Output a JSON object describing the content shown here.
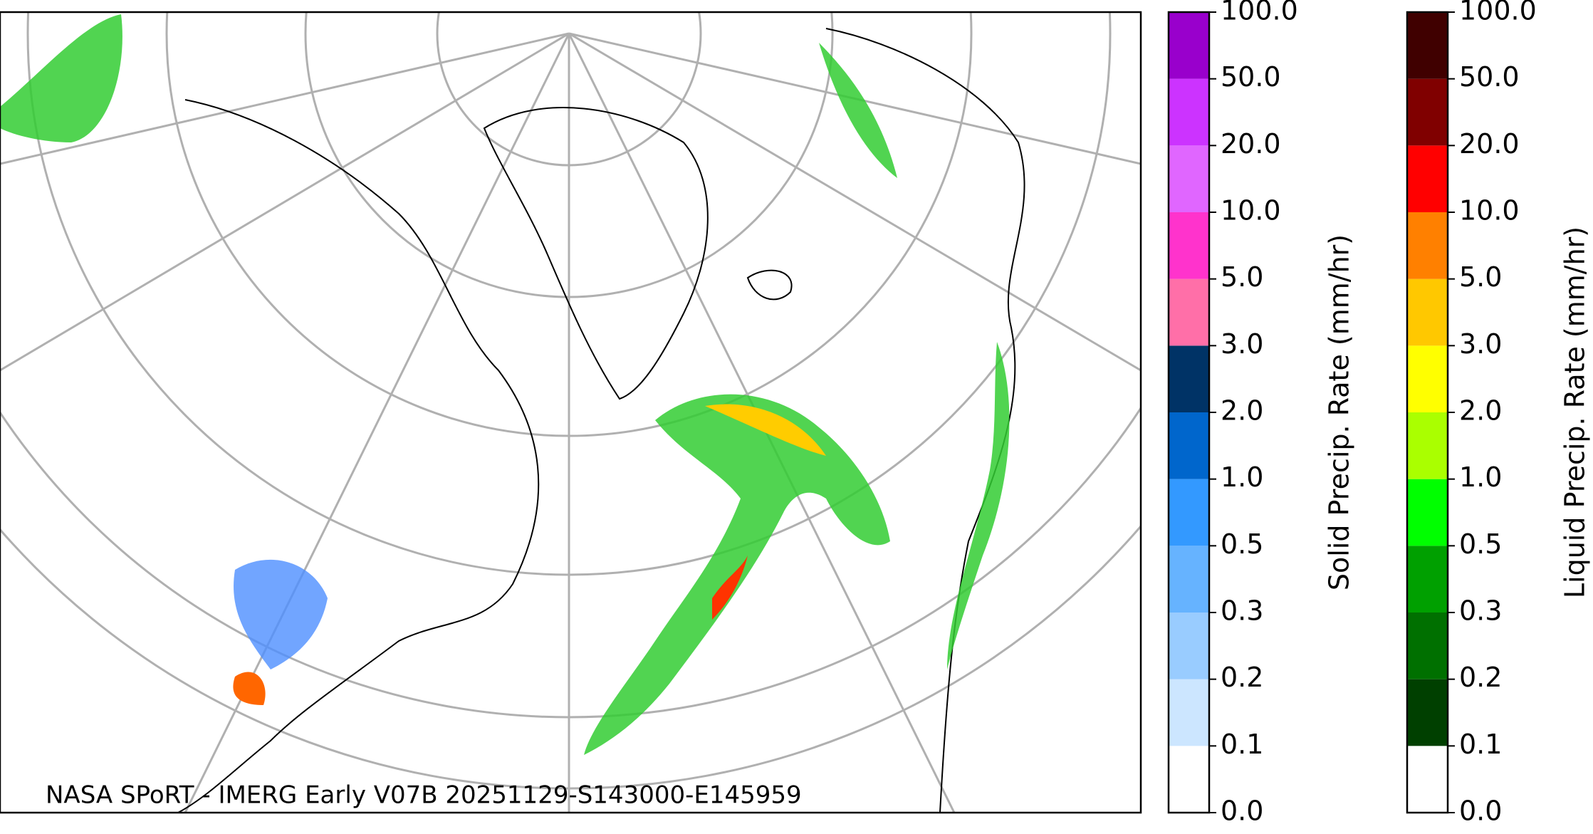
{
  "map": {
    "caption": "NASA SPoRT - IMERG Early V07B 20251129-S143000-E145959",
    "colorbars": [
      {
        "label": "Solid Precip. Rate (mm/hr)",
        "ticks": [
          {
            "value": 0,
            "label": "0.0"
          },
          0.1,
          0.2,
          0.3,
          0.5,
          {
            "value": 1,
            "label": "1.0"
          },
          {
            "value": 2,
            "label": "2.0"
          },
          {
            "value": 3,
            "label": "3.0"
          },
          {
            "value": 5,
            "label": "5.0"
          },
          {
            "value": 10,
            "label": "10.0"
          },
          {
            "value": 20,
            "label": "20.0"
          },
          {
            "value": 50,
            "label": "50.0"
          },
          {
            "value": 100,
            "label": "100.0"
          }
        ],
        "colors": [
          "#ffffff",
          "#cce6ff",
          "#99ccff",
          "#66b3ff",
          "#3399ff",
          "#0066cc",
          "#003366",
          "#ff6fa8",
          "#ff33cc",
          "#e066ff",
          "#cc33ff",
          "#9900cc"
        ]
      },
      {
        "label": "Liquid Precip. Rate (mm/hr)",
        "ticks": [
          {
            "value": 0,
            "label": "0.0"
          },
          0.1,
          0.2,
          0.3,
          0.5,
          {
            "value": 1,
            "label": "1.0"
          },
          {
            "value": 2,
            "label": "2.0"
          },
          {
            "value": 3,
            "label": "3.0"
          },
          {
            "value": 5,
            "label": "5.0"
          },
          {
            "value": 10,
            "label": "10.0"
          },
          {
            "value": 20,
            "label": "20.0"
          },
          {
            "value": 50,
            "label": "50.0"
          },
          {
            "value": 100,
            "label": "100.0"
          }
        ],
        "colors": [
          "#ffffff",
          "#004000",
          "#007000",
          "#00a000",
          "#00ff00",
          "#aaff00",
          "#ffff00",
          "#ffc800",
          "#ff8000",
          "#ff0000",
          "#800000",
          "#400000"
        ]
      }
    ]
  }
}
